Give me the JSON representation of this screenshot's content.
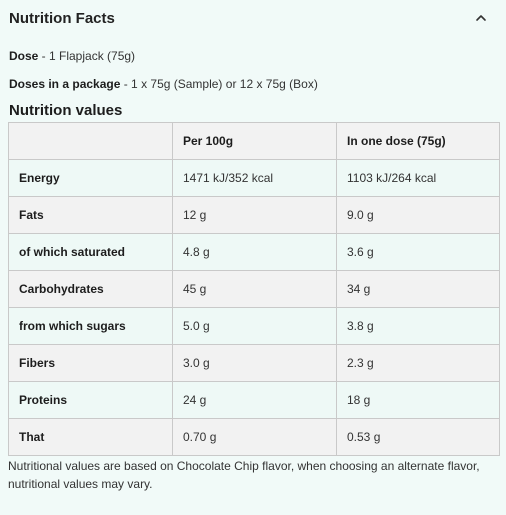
{
  "header": {
    "title": "Nutrition Facts",
    "toggle_icon": "chevron-up-icon"
  },
  "info": {
    "dose_label": "Dose",
    "dose_value": " - 1 Flapjack (75g)",
    "package_label": "Doses in a package",
    "package_value": " - 1 x 75g (Sample) or 12 x 75g (Box)"
  },
  "section_title": "Nutrition values",
  "table": {
    "headers": [
      "",
      "Per 100g",
      "In one dose (75g)"
    ],
    "rows": [
      {
        "name": "Energy",
        "per100": "1471 kJ/352 kcal",
        "perDose": "1103 kJ/264 kcal"
      },
      {
        "name": "Fats",
        "per100": "12 g",
        "perDose": "9.0 g"
      },
      {
        "name": "of which saturated",
        "per100": "4.8 g",
        "perDose": "3.6 g"
      },
      {
        "name": "Carbohydrates",
        "per100": "45 g",
        "perDose": "34 g"
      },
      {
        "name": "from which sugars",
        "per100": "5.0 g",
        "perDose": "3.8 g"
      },
      {
        "name": "Fibers",
        "per100": "3.0 g",
        "perDose": "2.3 g"
      },
      {
        "name": "Proteins",
        "per100": "24 g",
        "perDose": "18 g"
      },
      {
        "name": "That",
        "per100": "0.70 g",
        "perDose": "0.53 g"
      }
    ]
  },
  "note": "Nutritional values are based on Chocolate Chip flavor, when choosing an alternate flavor, nutritional values may vary."
}
